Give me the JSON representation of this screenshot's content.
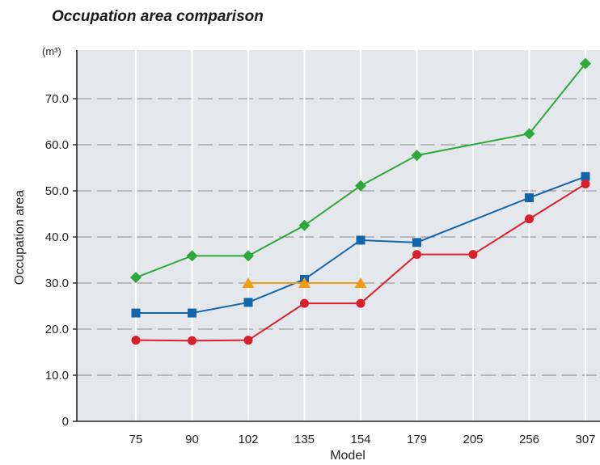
{
  "chart_data": {
    "type": "line",
    "title": "Occupation area comparison",
    "ylabel": "Occupation area",
    "yunit": "(m³)",
    "xlabel": "Model",
    "ylim": [
      0,
      80
    ],
    "yticks": [
      0,
      10,
      20,
      30,
      40,
      50,
      60,
      70
    ],
    "ytick_labels": [
      "0",
      "10.0",
      "20.0",
      "30.0",
      "40.0",
      "50.0",
      "60.0",
      "70.0"
    ],
    "categories": [
      "75",
      "90",
      "102",
      "135",
      "154",
      "179",
      "205",
      "256",
      "307"
    ],
    "grid": true,
    "plot_background": "#e4e8ec",
    "series": [
      {
        "color": "#2ea83a",
        "marker": "diamond",
        "values": [
          31.2,
          35.9,
          35.9,
          42.5,
          51.1,
          57.7,
          null,
          62.4,
          77.6
        ]
      },
      {
        "color": "#1466ab",
        "marker": "square",
        "values": [
          23.5,
          23.5,
          25.8,
          30.8,
          39.3,
          38.8,
          null,
          48.5,
          53.1
        ]
      },
      {
        "color": "#d8202c",
        "marker": "circle",
        "values": [
          17.6,
          17.5,
          17.6,
          25.6,
          25.6,
          36.2,
          36.2,
          43.9,
          51.5
        ]
      },
      {
        "color": "#f39c12",
        "marker": "triangle",
        "values": [
          null,
          null,
          30.0,
          30.0,
          30.0,
          null,
          null,
          null,
          null
        ]
      }
    ]
  }
}
